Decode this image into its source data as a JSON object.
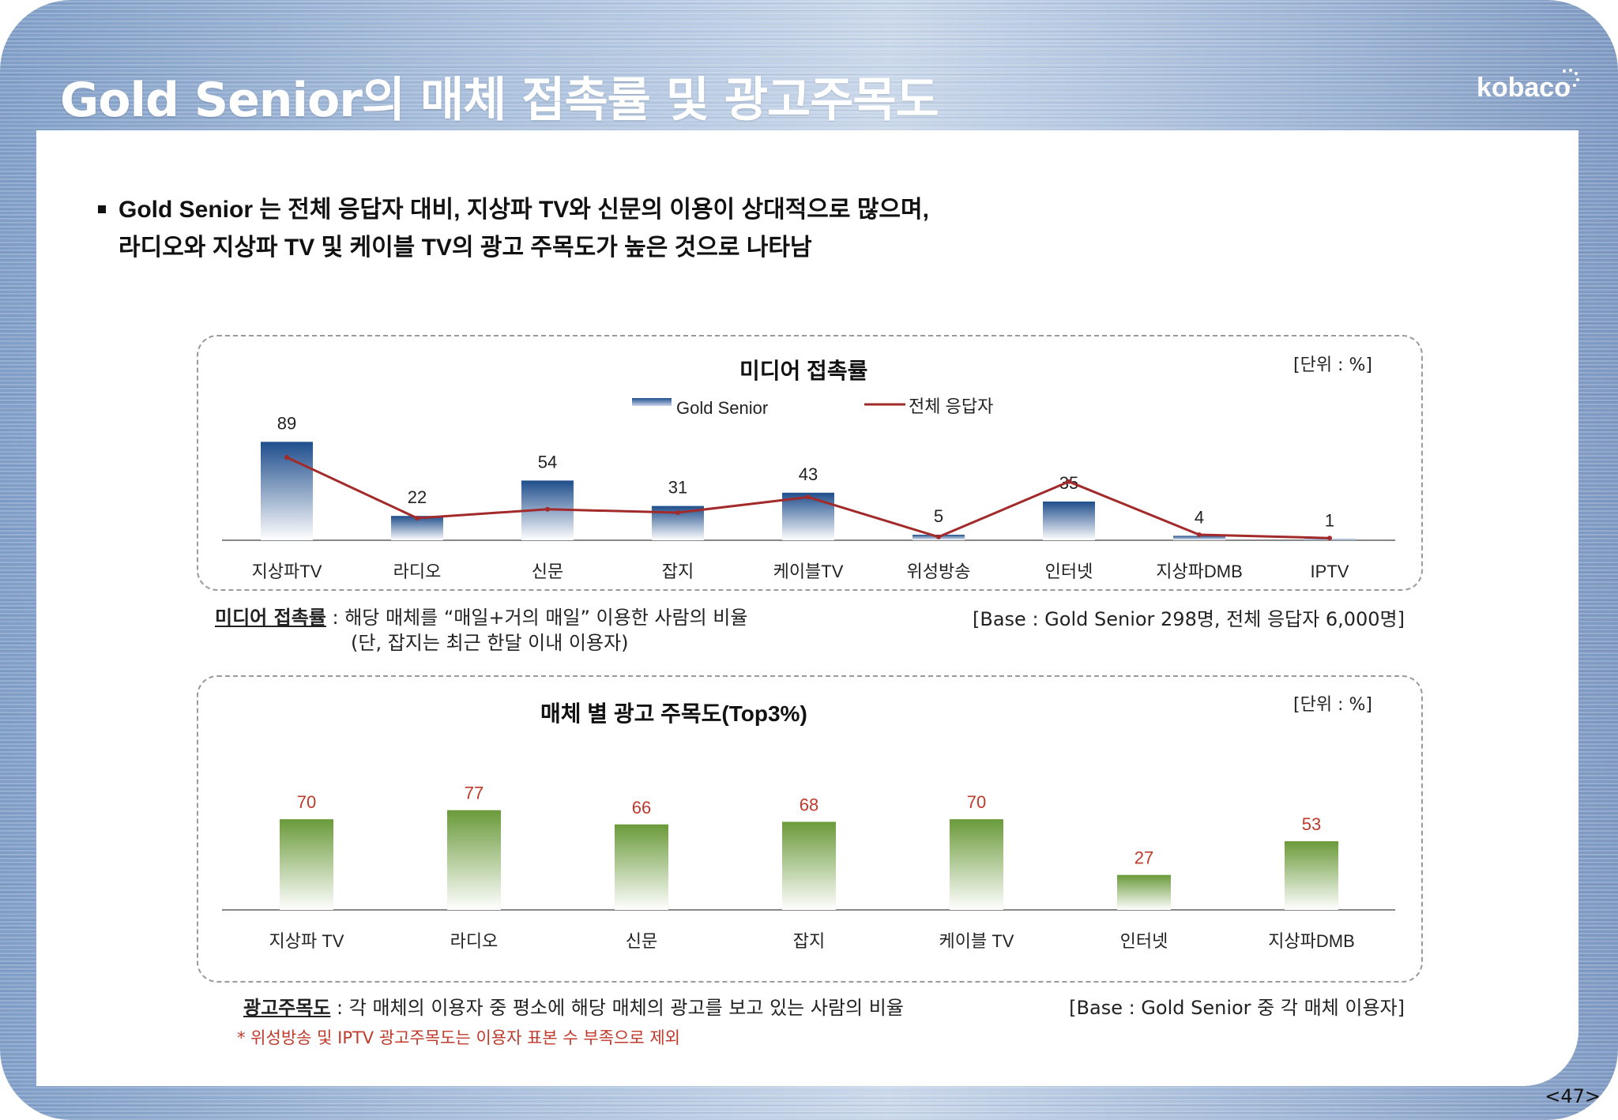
{
  "header": {
    "title": "Gold Senior의 매체 접촉률 및 광고주목도",
    "logo_text": "kobaco"
  },
  "intro": {
    "line1": "Gold Senior 는 전체 응답자 대비, 지상파 TV와 신문의 이용이 상대적으로 많으며,",
    "line2": "라디오와 지상파 TV 및 케이블 TV의 광고 주목도가 높은 것으로 나타남"
  },
  "chart_data": [
    {
      "type": "bar",
      "title": "미디어 접촉률",
      "unit": "[단위 : %]",
      "categories": [
        "지상파TV",
        "라디오",
        "신문",
        "잡지",
        "케이블TV",
        "위성방송",
        "인터넷",
        "지상파DMB",
        "IPTV"
      ],
      "series": [
        {
          "name": "Gold Senior",
          "type": "bar",
          "values": [
            89,
            22,
            54,
            31,
            43,
            5,
            35,
            4,
            1
          ],
          "color": "#1f4e8c"
        },
        {
          "name": "전체 응답자",
          "type": "line",
          "values": [
            75,
            20,
            28,
            25,
            39,
            3,
            53,
            5,
            2
          ],
          "color": "#a32a2a"
        }
      ],
      "ylim": [
        0,
        100
      ]
    },
    {
      "type": "bar",
      "title": "매체 별 광고 주목도(Top3%)",
      "unit": "[단위 : %]",
      "categories": [
        "지상파 TV",
        "라디오",
        "신문",
        "잡지",
        "케이블 TV",
        "인터넷",
        "지상파DMB"
      ],
      "values": [
        70,
        77,
        66,
        68,
        70,
        27,
        53
      ],
      "color": "#6a9a3a",
      "label_color": "#c0392b",
      "ylim": [
        0,
        100
      ]
    }
  ],
  "notes": {
    "media_term": "미디어 접촉률",
    "media_def": " : 해당 매체를 “매일+거의 매일” 이용한 사람의 비율",
    "media_def2": "(단, 잡지는 최근 한달 이내 이용자)",
    "media_base": "[Base : Gold Senior 298명, 전체 응답자 6,000명]",
    "ad_term": "광고주목도",
    "ad_def": " : 각 매체의 이용자 중 평소에 해당 매체의 광고를 보고 있는 사람의 비율",
    "ad_note": "* 위성방송 및 IPTV 광고주목도는 이용자 표본 수 부족으로 제외",
    "ad_base": "[Base : Gold Senior 중 각 매체 이용자]"
  },
  "page_number": "<47>"
}
